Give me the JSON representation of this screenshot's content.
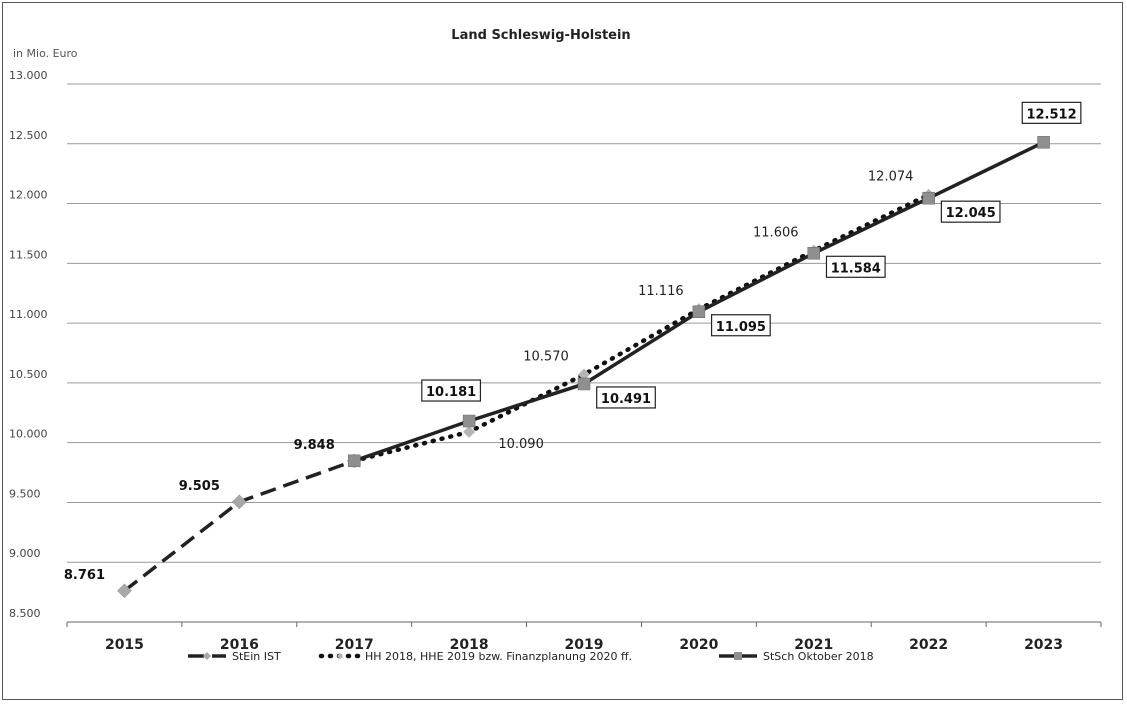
{
  "chart_data": {
    "type": "line",
    "title": "Land Schleswig-Holstein",
    "unit_label": "in Mio. Euro",
    "categories": [
      "2015",
      "2016",
      "2017",
      "2018",
      "2019",
      "2020",
      "2021",
      "2022",
      "2023"
    ],
    "ylim": [
      8500,
      13000
    ],
    "ytick_values": [
      8500,
      9000,
      9500,
      10000,
      10500,
      11000,
      11500,
      12000,
      12500,
      13000
    ],
    "ytick_labels": [
      "8.500",
      "9.000",
      "9.500",
      "10.000",
      "10.500",
      "11.000",
      "11.500",
      "12.000",
      "12.500",
      "13.000"
    ],
    "grid": true,
    "legend_position": "bottom",
    "series": [
      {
        "name": "StEin IST",
        "style": "dashed",
        "color": "#222222",
        "marker_color": "#a8a8a8",
        "values": [
          8761,
          9505,
          9848,
          null,
          null,
          null,
          null,
          null,
          null
        ],
        "labels": [
          "8.761",
          "9.505",
          "9.848",
          null,
          null,
          null,
          null,
          null,
          null
        ]
      },
      {
        "name": "HH 2018, HHE 2019 bzw. Finanzplanung 2020 ff.",
        "style": "dotted",
        "color": "#111111",
        "marker_color": "#b5b5b5",
        "values": [
          null,
          null,
          9848,
          10090,
          10570,
          11116,
          11606,
          12074,
          null
        ],
        "labels": [
          null,
          null,
          null,
          "10.090",
          "10.570",
          "11.116",
          "11.606",
          "12.074",
          null
        ]
      },
      {
        "name": "StSch Oktober 2018",
        "style": "solid",
        "color": "#222222",
        "marker_color": "#8f8f8f",
        "values": [
          null,
          null,
          9848,
          10181,
          10491,
          11095,
          11584,
          12045,
          12512
        ],
        "labels": [
          null,
          null,
          null,
          "10.181",
          "10.491",
          "11.095",
          "11.584",
          "12.045",
          "12.512"
        ]
      }
    ]
  }
}
